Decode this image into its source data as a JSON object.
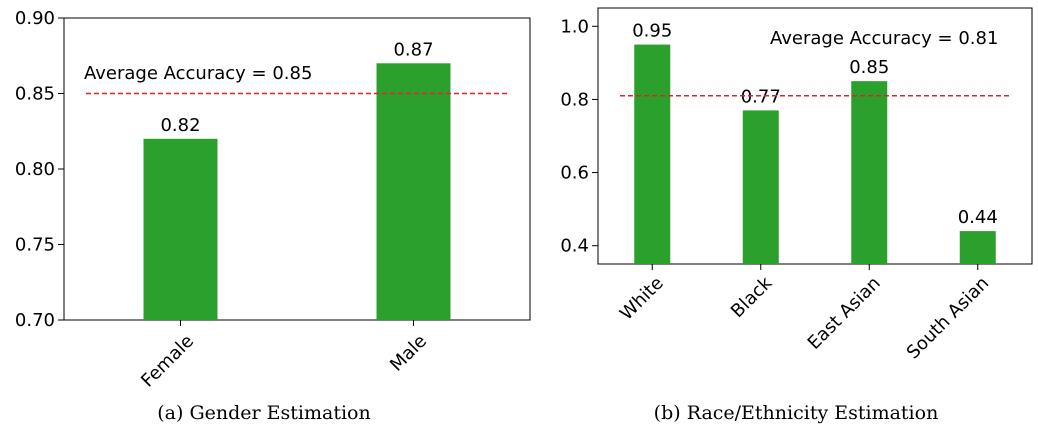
{
  "chart_data": [
    {
      "type": "bar",
      "caption": "(a)  Gender Estimation",
      "categories": [
        "Female",
        "Male"
      ],
      "values": [
        0.82,
        0.87
      ],
      "value_labels": [
        "0.82",
        "0.87"
      ],
      "ylim": [
        0.7,
        0.9
      ],
      "yticks": [
        "0.70",
        "0.75",
        "0.80",
        "0.85",
        "0.90"
      ],
      "ytick_values": [
        0.7,
        0.75,
        0.8,
        0.85,
        0.9
      ],
      "average": 0.85,
      "average_label": "Average Accuracy = 0.85",
      "bar_color": "#2ca02c",
      "avg_line_color": "#d62728",
      "grid": false
    },
    {
      "type": "bar",
      "caption": "(b)  Race/Ethnicity Estimation",
      "categories": [
        "White",
        "Black",
        "East Asian",
        "South Asian"
      ],
      "values": [
        0.95,
        0.77,
        0.85,
        0.44
      ],
      "value_labels": [
        "0.95",
        "0.77",
        "0.85",
        "0.44"
      ],
      "ylim": [
        0.35,
        1.05
      ],
      "yticks": [
        "0.4",
        "0.6",
        "0.8",
        "1.0"
      ],
      "ytick_values": [
        0.4,
        0.6,
        0.8,
        1.0
      ],
      "average": 0.81,
      "average_label": "Average Accuracy = 0.81",
      "bar_color": "#2ca02c",
      "avg_line_color": "#d62728",
      "grid": false
    }
  ]
}
